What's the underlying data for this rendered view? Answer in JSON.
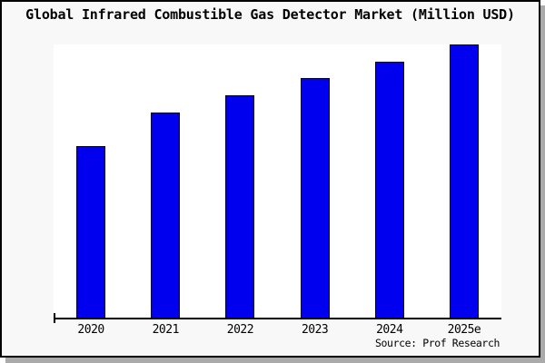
{
  "window": {
    "title": "Global Infrared Combustible Gas Detector Market (Million USD)",
    "source_label": "Source: Prof Research"
  },
  "colors": {
    "bar_fill": "#0000ee",
    "bar_border": "#000000",
    "canvas_background": "#f8f8f8",
    "plot_background": "#ffffff",
    "axis": "#000000",
    "frame_border": "#000000",
    "frame_shadow": "#aaaaaa",
    "text": "#000000"
  },
  "chart_data": {
    "type": "bar",
    "title": "Global Infrared Combustible Gas Detector Market (Million USD)",
    "categories": [
      "2020",
      "2021",
      "2022",
      "2023",
      "2024",
      "2025e"
    ],
    "values": [
      62.7,
      75.0,
      81.3,
      87.7,
      93.7,
      100.0
    ],
    "value_units": "relative index (2025e = 100); y-axis has no tick labels in the chart",
    "xlabel": "",
    "ylabel": "",
    "ylim": [
      0,
      100
    ],
    "grid": false,
    "legend": "none",
    "annotations": [
      "Source: Prof Research"
    ]
  }
}
